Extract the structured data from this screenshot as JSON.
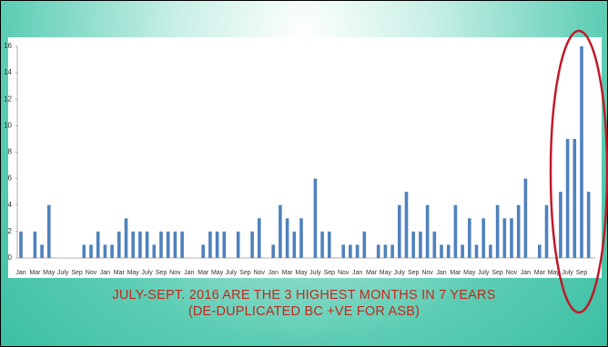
{
  "chart_data": {
    "type": "bar",
    "color": "#4f81bd",
    "categories": [
      "Jan",
      null,
      "Mar",
      null,
      "May",
      null,
      "July",
      null,
      "Sep",
      null,
      "Nov",
      null,
      "Jan",
      null,
      "Mar",
      null,
      "May",
      null,
      "July",
      null,
      "Sep",
      null,
      "Nov",
      null,
      "Jan",
      null,
      "Mar",
      null,
      "May",
      null,
      "July",
      null,
      "Sep",
      null,
      "Nov",
      null,
      "Jan",
      null,
      "Mar",
      null,
      "May",
      null,
      "July",
      null,
      "Sep",
      null,
      "Nov",
      null,
      "Jan",
      null,
      "Mar",
      null,
      "May",
      null,
      "July",
      null,
      "Sep",
      null,
      "Nov",
      null,
      "Jan",
      null,
      "Mar",
      null,
      "May",
      null,
      "July",
      null,
      "Sep",
      null,
      "Nov",
      null,
      "Jan",
      null,
      "Mar",
      null,
      "May",
      null,
      "July",
      null,
      "Sep",
      null
    ],
    "values": [
      2,
      0,
      2,
      1,
      4,
      0,
      0,
      0,
      0,
      1,
      1,
      2,
      1,
      1,
      2,
      3,
      2,
      2,
      2,
      1,
      2,
      2,
      2,
      2,
      0,
      0,
      1,
      2,
      2,
      2,
      0,
      2,
      0,
      2,
      3,
      0,
      1,
      4,
      3,
      2,
      3,
      0,
      6,
      2,
      2,
      0,
      1,
      1,
      1,
      2,
      0,
      1,
      1,
      1,
      4,
      5,
      2,
      2,
      4,
      2,
      1,
      1,
      4,
      1,
      3,
      1,
      3,
      1,
      4,
      3,
      3,
      4,
      6,
      0,
      1,
      4,
      0,
      5,
      9,
      9,
      16,
      5
    ],
    "ylim": [
      0,
      16
    ],
    "yticks": [
      0,
      2,
      4,
      6,
      8,
      10,
      12,
      14,
      16
    ],
    "caption": [
      "JULY-SEPT. 2016 ARE THE 3 HIGHEST MONTHS IN 7 YEARS",
      "(DE-DUPLICATED BC +VE FOR ASB)"
    ]
  }
}
